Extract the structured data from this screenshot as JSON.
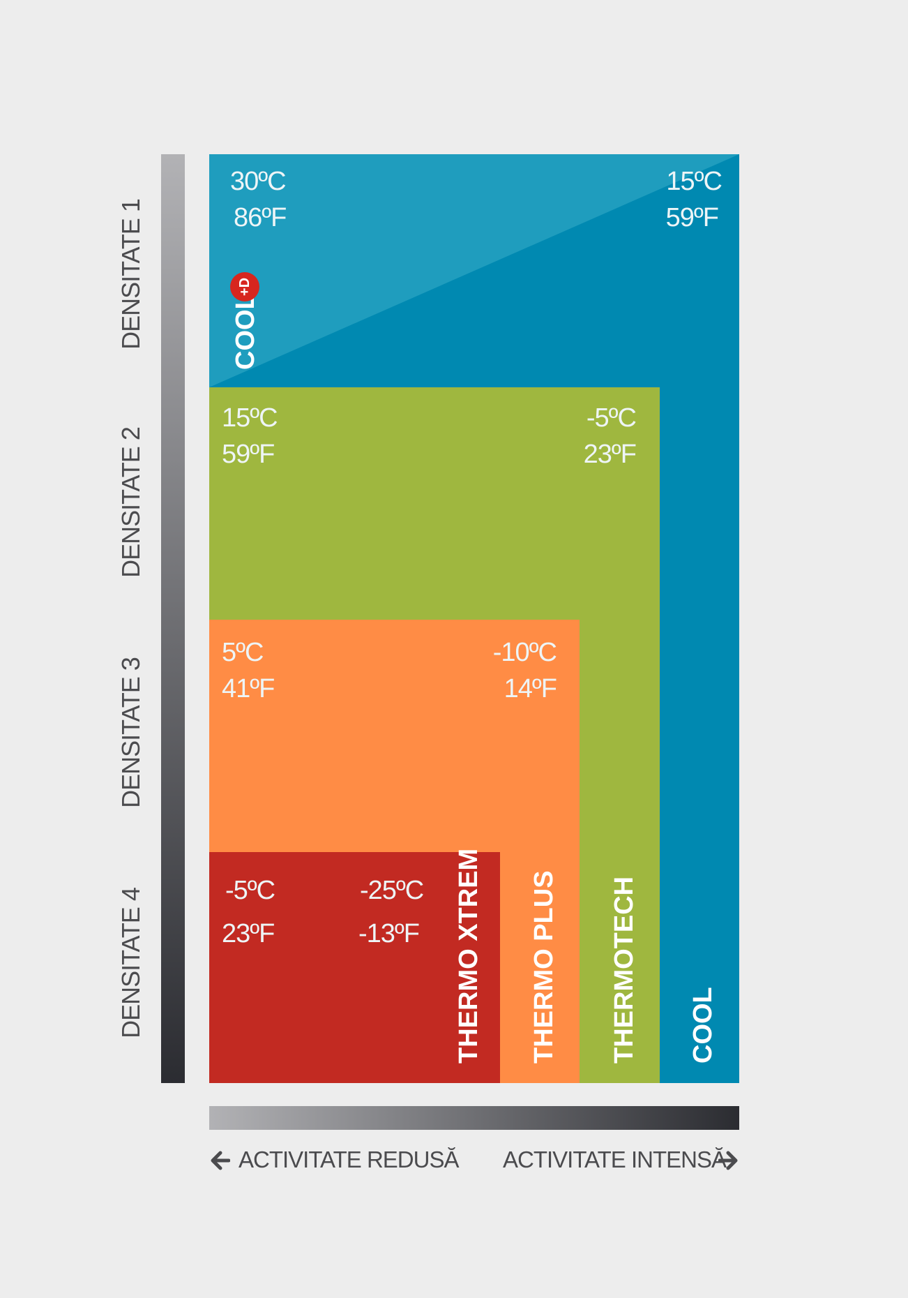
{
  "density_labels": [
    "DENSITATE 1",
    "DENSITATE 2",
    "DENSITATE 3",
    "DENSITATE 4"
  ],
  "products": {
    "cool_d": {
      "name": "COOL",
      "badge": "+D",
      "temp_c": "30ºC",
      "temp_f": "86ºF"
    },
    "cool": {
      "name": "COOL",
      "temp_c": "15ºC",
      "temp_f": "59ºF",
      "color": "#0089b1"
    },
    "thermotech": {
      "name": "THERMOTECH",
      "low_c": "15ºC",
      "low_f": "59ºF",
      "high_c": "-5ºC",
      "high_f": "23ºF",
      "color": "#9fb73f"
    },
    "thermo_plus": {
      "name": "THERMO PLUS",
      "low_c": "5ºC",
      "low_f": "41ºF",
      "high_c": "-10ºC",
      "high_f": "14ºF",
      "color": "#ff8c45"
    },
    "thermo_xtrem": {
      "name": "THERMO XTREM",
      "low_c": "-5ºC",
      "low_f": "23ºF",
      "high_c": "-25ºC",
      "high_f": "-13ºF",
      "color": "#c22a22"
    }
  },
  "activity": {
    "low": "ACTIVITATE REDUSĂ",
    "high": "ACTIVITATE INTENSĂ"
  },
  "colors": {
    "cool_d": "#1f9dbe",
    "background": "#ededed",
    "label_text": "#4b4b4e"
  }
}
